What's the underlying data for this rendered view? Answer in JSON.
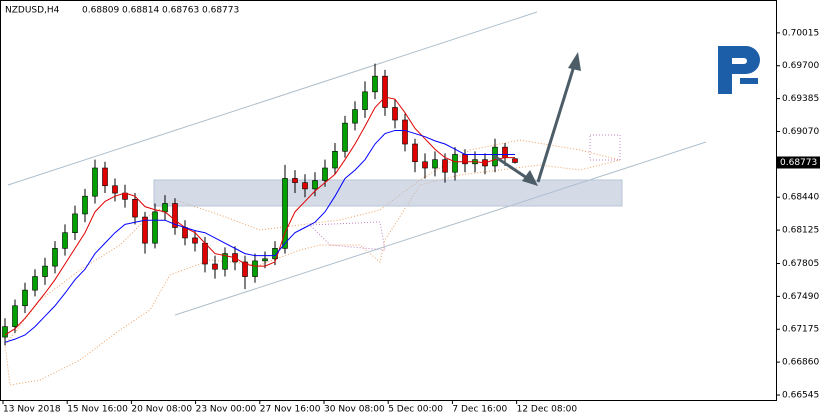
{
  "chart_data": {
    "type": "candlestick",
    "symbol": "NZDUSD,H4",
    "ylim": [
      0.66497,
      0.7033
    ],
    "yticks": [
      0.70015,
      {
        "value": 0.697,
        "label": "0.69700"
      },
      0.69385,
      {
        "value": 0.6907,
        "label": "0.69070"
      },
      {
        "value": 0.6844,
        "label": "0.68440"
      },
      0.68125,
      0.67805,
      {
        "value": 0.6749,
        "label": "0.67490"
      },
      0.67175,
      {
        "value": 0.6686,
        "label": "0.66860"
      },
      0.66545
    ],
    "time_labels": [
      "13 Nov 2018",
      "15 Nov 16:00",
      "20 Nov 08:00",
      "23 Nov 00:00",
      "27 Nov 16:00",
      "30 Nov 08:00",
      "5 Dec 00:00",
      "7 Dec 16:00",
      "12 Dec 08:00"
    ],
    "up_color": "#00a000",
    "down_color": "#e00000",
    "open": [
      0.671,
      0.672,
      0.674,
      0.6755,
      0.6768,
      0.6778,
      0.6795,
      0.681,
      0.6828,
      0.6845,
      0.6872,
      0.6855,
      0.6848,
      0.6842,
      0.6825,
      0.68,
      0.683,
      0.6838,
      0.6815,
      0.6805,
      0.68,
      0.678,
      0.6775,
      0.679,
      0.6782,
      0.6768,
      0.6783,
      0.6785,
      0.6795,
      0.6862,
      0.6858,
      0.6852,
      0.686,
      0.6872,
      0.6888,
      0.6915,
      0.6928,
      0.6945,
      0.696,
      0.693,
      0.6918,
      0.6895,
      0.6878,
      0.6872,
      0.688,
      0.6868,
      0.6885,
      0.6876,
      0.688,
      0.6874,
      0.6892,
      0.68809
    ],
    "high": [
      0.6728,
      0.6746,
      0.6762,
      0.6775,
      0.6786,
      0.6802,
      0.6818,
      0.6836,
      0.6852,
      0.688,
      0.6878,
      0.6862,
      0.6856,
      0.6848,
      0.683,
      0.6838,
      0.6846,
      0.6843,
      0.6822,
      0.6812,
      0.6806,
      0.6788,
      0.6796,
      0.6797,
      0.6788,
      0.679,
      0.6792,
      0.6802,
      0.6875,
      0.687,
      0.6866,
      0.6868,
      0.688,
      0.6896,
      0.6922,
      0.6936,
      0.6955,
      0.6972,
      0.6966,
      0.6938,
      0.6924,
      0.69,
      0.6886,
      0.6888,
      0.6886,
      0.6892,
      0.689,
      0.6888,
      0.6886,
      0.69,
      0.6896,
      0.68814
    ],
    "low": [
      0.6702,
      0.6714,
      0.6733,
      0.6749,
      0.676,
      0.6771,
      0.6788,
      0.6803,
      0.682,
      0.6838,
      0.6848,
      0.684,
      0.6834,
      0.6818,
      0.679,
      0.6795,
      0.6822,
      0.6808,
      0.6798,
      0.6792,
      0.6772,
      0.6766,
      0.6768,
      0.6774,
      0.6756,
      0.6762,
      0.6776,
      0.6779,
      0.679,
      0.6848,
      0.6844,
      0.6845,
      0.6854,
      0.6866,
      0.6882,
      0.6908,
      0.692,
      0.6938,
      0.6922,
      0.691,
      0.6888,
      0.6868,
      0.6862,
      0.6864,
      0.6858,
      0.686,
      0.6868,
      0.6868,
      0.6866,
      0.6868,
      0.6874,
      0.68763
    ],
    "close": [
      0.672,
      0.674,
      0.6755,
      0.6768,
      0.6778,
      0.6795,
      0.681,
      0.6828,
      0.6845,
      0.6872,
      0.6855,
      0.6848,
      0.6842,
      0.6825,
      0.68,
      0.683,
      0.6838,
      0.6815,
      0.6805,
      0.68,
      0.678,
      0.6775,
      0.679,
      0.6782,
      0.6768,
      0.6783,
      0.6785,
      0.6795,
      0.6862,
      0.6858,
      0.6852,
      0.686,
      0.6872,
      0.6888,
      0.6915,
      0.6928,
      0.6945,
      0.696,
      0.693,
      0.6918,
      0.6895,
      0.6878,
      0.6872,
      0.688,
      0.6868,
      0.6885,
      0.6876,
      0.688,
      0.6874,
      0.6892,
      0.6882,
      0.68773
    ],
    "series": [
      {
        "color": "#e00000",
        "values": [
          0.6712,
          0.6718,
          0.6728,
          0.674,
          0.6752,
          0.6765,
          0.678,
          0.6795,
          0.681,
          0.683,
          0.684,
          0.6845,
          0.6848,
          0.6845,
          0.6835,
          0.6832,
          0.683,
          0.6822,
          0.6815,
          0.681,
          0.68,
          0.679,
          0.6788,
          0.6786,
          0.678,
          0.6778,
          0.6778,
          0.6782,
          0.681,
          0.683,
          0.684,
          0.685,
          0.6858,
          0.6866,
          0.688,
          0.6895,
          0.6912,
          0.693,
          0.694,
          0.6938,
          0.6925,
          0.691,
          0.69,
          0.689,
          0.6882,
          0.6878,
          0.6878,
          0.6878,
          0.6877,
          0.688,
          0.6882,
          0.6882
        ]
      },
      {
        "color": "#0000ff",
        "values": [
          0.6705,
          0.6708,
          0.6712,
          0.672,
          0.673,
          0.674,
          0.6752,
          0.6765,
          0.6775,
          0.679,
          0.68,
          0.681,
          0.6818,
          0.682,
          0.6822,
          0.6822,
          0.6822,
          0.6818,
          0.6815,
          0.6812,
          0.681,
          0.6805,
          0.68,
          0.6795,
          0.679,
          0.6788,
          0.6788,
          0.6788,
          0.68,
          0.681,
          0.6815,
          0.682,
          0.683,
          0.6845,
          0.6862,
          0.687,
          0.688,
          0.6895,
          0.6905,
          0.6908,
          0.6908,
          0.6905,
          0.6902,
          0.6898,
          0.6895,
          0.689,
          0.6885,
          0.6885,
          0.6885,
          0.6885,
          0.6885,
          0.6885
        ]
      }
    ]
  }
}
